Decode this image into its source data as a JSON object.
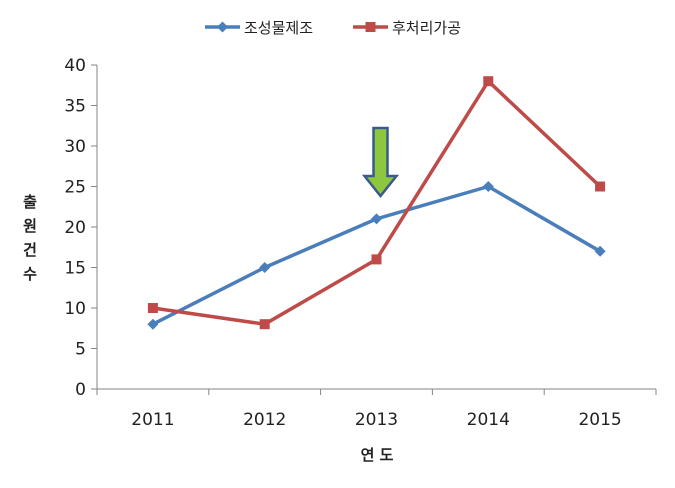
{
  "chart_data": {
    "type": "line",
    "categories": [
      "2011",
      "2012",
      "2013",
      "2014",
      "2015"
    ],
    "series": [
      {
        "name": "조성물제조",
        "values": [
          8,
          15,
          21,
          25,
          17
        ],
        "color": "#4a7ebb",
        "marker": "diamond"
      },
      {
        "name": "후처리가공",
        "values": [
          10,
          8,
          16,
          38,
          25
        ],
        "color": "#be4b48",
        "marker": "square"
      }
    ],
    "ylim": [
      0,
      40
    ],
    "yticks": [
      0,
      5,
      10,
      15,
      20,
      25,
      30,
      35,
      40
    ],
    "xlabel": "연 도",
    "ylabel": "출원건수",
    "ylabel_chars": [
      "출",
      "원",
      "건",
      "수"
    ],
    "legend_position": "top",
    "grid": false,
    "annotation": {
      "type": "down-arrow",
      "at_category": "2013",
      "color": "#8dc63f",
      "border": "#3a5a8c"
    }
  }
}
